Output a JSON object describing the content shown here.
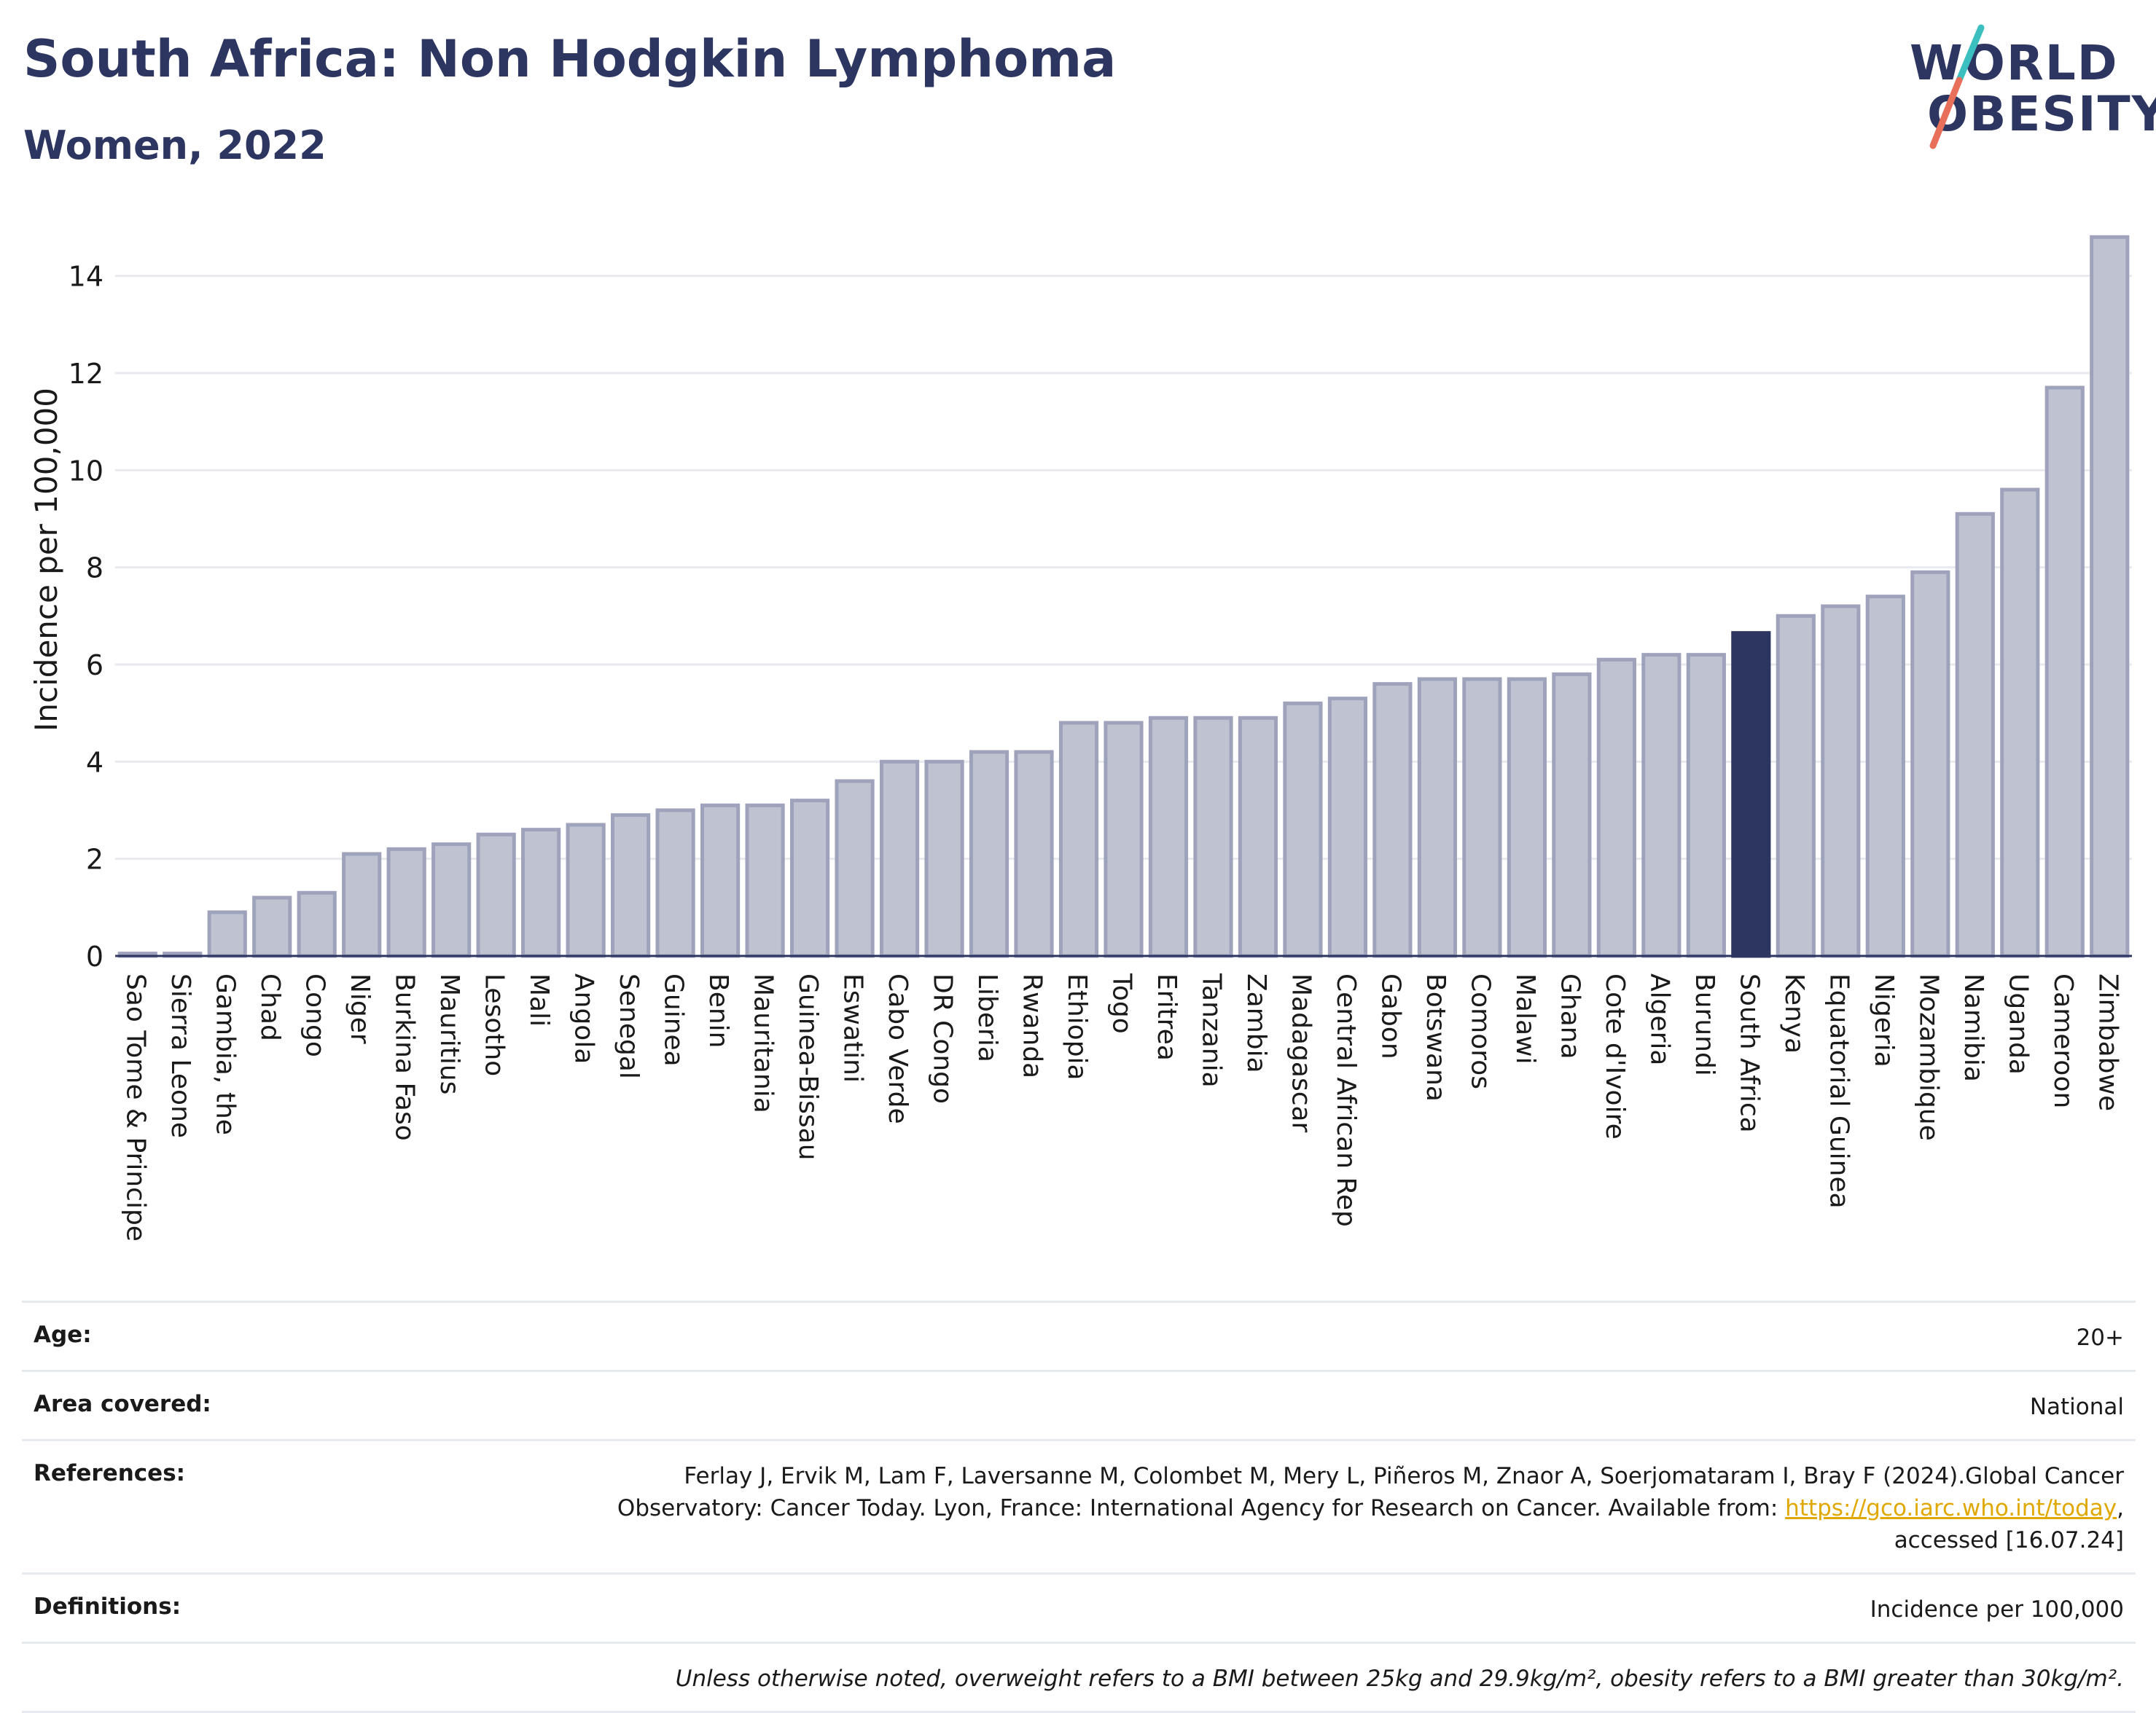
{
  "header": {
    "title": "South Africa: Non Hodgkin Lymphoma",
    "subtitle": "Women, 2022"
  },
  "logo": {
    "line1": "WORLD",
    "line2": "OBESITY",
    "colors": {
      "text": "#2d3561",
      "slash_top": "#3bbfbf",
      "slash_bottom": "#e8705a"
    }
  },
  "chart_data": {
    "type": "bar",
    "ylabel": "Incidence per 100,000",
    "xlabel": "",
    "ylim": [
      0,
      15
    ],
    "yticks": [
      0,
      2,
      4,
      6,
      8,
      10,
      12,
      14
    ],
    "grid": true,
    "highlight": "South Africa",
    "colors": {
      "bar": "#bfc3d1",
      "bar_edge": "#9ea3bb",
      "highlight": "#2d3561",
      "grid": "#e8eaf0"
    },
    "categories": [
      "Sao Tome & Principe",
      "Sierra Leone",
      "Gambia, the",
      "Chad",
      "Congo",
      "Niger",
      "Burkina Faso",
      "Mauritius",
      "Lesotho",
      "Mali",
      "Angola",
      "Senegal",
      "Guinea",
      "Benin",
      "Mauritania",
      "Guinea-Bissau",
      "Eswatini",
      "Cabo Verde",
      "DR Congo",
      "Liberia",
      "Rwanda",
      "Ethiopia",
      "Togo",
      "Eritrea",
      "Tanzania",
      "Zambia",
      "Madagascar",
      "Central African Rep",
      "Gabon",
      "Botswana",
      "Comoros",
      "Malawi",
      "Ghana",
      "Cote d'Ivoire",
      "Algeria",
      "Burundi",
      "South Africa",
      "Kenya",
      "Equatorial Guinea",
      "Nigeria",
      "Mozambique",
      "Namibia",
      "Uganda",
      "Cameroon",
      "Zimbabwe"
    ],
    "values": [
      0.05,
      0.05,
      0.9,
      1.2,
      1.3,
      2.1,
      2.2,
      2.3,
      2.5,
      2.6,
      2.7,
      2.9,
      3.0,
      3.1,
      3.1,
      3.2,
      3.6,
      4.0,
      4.0,
      4.2,
      4.2,
      4.8,
      4.8,
      4.9,
      4.9,
      4.9,
      5.2,
      5.3,
      5.6,
      5.7,
      5.7,
      5.7,
      5.8,
      6.1,
      6.2,
      6.2,
      6.65,
      7.0,
      7.2,
      7.4,
      7.9,
      9.1,
      9.6,
      11.7,
      14.8
    ]
  },
  "meta": {
    "age_label": "Age:",
    "age_value": "20+",
    "area_label": "Area covered:",
    "area_value": "National",
    "references_label": "References:",
    "references_text1": "Ferlay J, Ervik M, Lam F, Laversanne M, Colombet M, Mery L, Piñeros M, Znaor A, Soerjomataram I, Bray F (2024).Global Cancer",
    "references_text2": "Observatory: Cancer Today. Lyon, France: International Agency for Research on Cancer. Available from: ",
    "references_link": "https://gco.iarc.who.int/today",
    "references_text3": ",",
    "references_text4": "accessed [16.07.24]",
    "definitions_label": "Definitions:",
    "definitions_value": "Incidence per 100,000",
    "note": "Unless otherwise noted, overweight refers to a BMI between 25kg and 29.9kg/m², obesity refers to a BMI greater than 30kg/m²."
  }
}
